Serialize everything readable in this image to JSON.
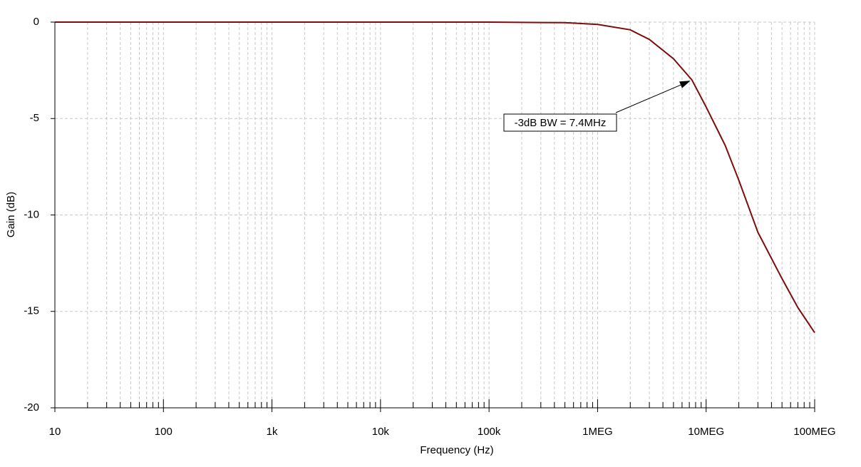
{
  "chart_data": {
    "type": "line",
    "xlabel": "Frequency (Hz)",
    "ylabel": "Gain (dB)",
    "log_x": true,
    "grid": true,
    "color": "#7b0d0d",
    "x": [
      10,
      100,
      1000,
      10000,
      100000,
      500000,
      1000000,
      2000000,
      3000000,
      5000000,
      7400000,
      10000000,
      15000000,
      20000000,
      30000000,
      50000000,
      70000000,
      100000000
    ],
    "values": [
      0,
      0,
      0,
      0,
      0,
      -0.03,
      -0.12,
      -0.4,
      -0.9,
      -1.9,
      -3,
      -4.4,
      -6.4,
      -8.2,
      -10.9,
      -13.3,
      -14.8,
      -16.1
    ],
    "xlim": [
      10,
      100000000
    ],
    "xticks": [
      10,
      100,
      {
        "value": 1000,
        "label": "1k"
      },
      {
        "value": 10000,
        "label": "10k"
      },
      {
        "value": 100000,
        "label": "100k"
      },
      {
        "value": 1000000,
        "label": "1MEG"
      },
      {
        "value": 10000000,
        "label": "10MEG"
      },
      {
        "value": 100000000,
        "label": "100MEG"
      }
    ],
    "ylim": [
      -20,
      0
    ],
    "yticks": [
      0,
      -5,
      -10,
      -15,
      -20
    ],
    "annotation": {
      "text": "-3dB BW = 7.4MHz",
      "x": 7400000,
      "y": -3
    }
  }
}
